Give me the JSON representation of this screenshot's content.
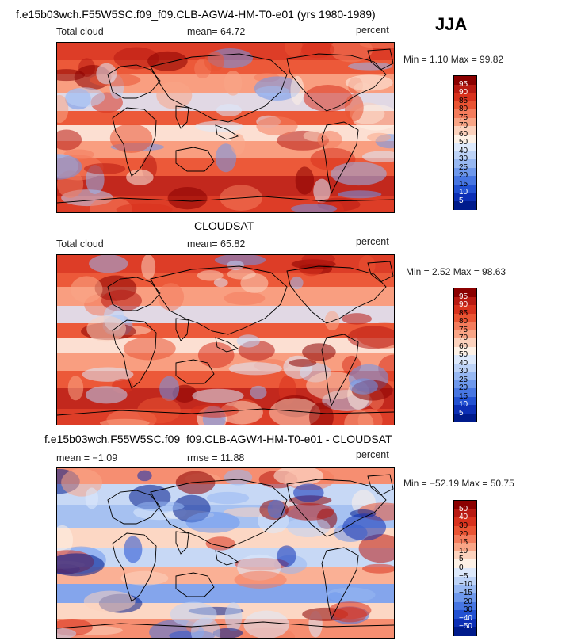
{
  "header": {
    "main_title": "f.e15b03wch.F55W5SC.f09_f09.CLB-AGW4-HM-T0-e01 (yrs 1980-1989)",
    "season": "JJA"
  },
  "panels": [
    {
      "title": "",
      "left_label": "Total cloud",
      "center_label": "mean=  64.72",
      "right_label": "percent",
      "minmax": "Min =   1.10 Max =  99.82"
    },
    {
      "title": "CLOUDSAT",
      "left_label": "Total cloud",
      "center_label": "mean=  65.82",
      "right_label": "percent",
      "minmax": "Min =   2.52 Max =  98.63"
    },
    {
      "title": "f.e15b03wch.F55W5SC.f09_f09.CLB-AGW4-HM-T0-e01 - CLOUDSAT",
      "left_label": "mean =  −1.09",
      "center_label": "rmse =  11.88",
      "right_label": "percent",
      "minmax": "Min = −52.19 Max =  50.75"
    }
  ],
  "chart_data": [
    {
      "type": "heatmap",
      "title": "",
      "variable": "Total cloud",
      "units": "percent",
      "mean": 64.72,
      "min": 1.1,
      "max": 99.82,
      "colorbar": {
        "levels": [
          "95",
          "90",
          "85",
          "80",
          "75",
          "70",
          "60",
          "50",
          "40",
          "30",
          "25",
          "20",
          "15",
          "10",
          "5"
        ],
        "colors": [
          "#8b0000",
          "#b81a12",
          "#d8321d",
          "#ea5433",
          "#f47c5c",
          "#f9a586",
          "#fcd2bd",
          "#fdf1e6",
          "#dde9fb",
          "#bdd3f7",
          "#97b8f2",
          "#6e98ec",
          "#4776e2",
          "#2251d2",
          "#0c2fb5",
          "#001b8c"
        ]
      }
    },
    {
      "type": "heatmap",
      "title": "CLOUDSAT",
      "variable": "Total cloud",
      "units": "percent",
      "mean": 65.82,
      "min": 2.52,
      "max": 98.63,
      "colorbar": {
        "levels": [
          "95",
          "90",
          "85",
          "80",
          "75",
          "70",
          "60",
          "50",
          "40",
          "30",
          "25",
          "20",
          "15",
          "10",
          "5"
        ],
        "colors": [
          "#8b0000",
          "#b81a12",
          "#d8321d",
          "#ea5433",
          "#f47c5c",
          "#f9a586",
          "#fcd2bd",
          "#fdf1e6",
          "#dde9fb",
          "#bdd3f7",
          "#97b8f2",
          "#6e98ec",
          "#4776e2",
          "#2251d2",
          "#0c2fb5",
          "#001b8c"
        ]
      }
    },
    {
      "type": "heatmap",
      "title": "f.e15b03wch.F55W5SC.f09_f09.CLB-AGW4-HM-T0-e01 - CLOUDSAT",
      "units": "percent",
      "mean": -1.09,
      "rmse": 11.88,
      "min": -52.19,
      "max": 50.75,
      "colorbar": {
        "levels": [
          "50",
          "40",
          "30",
          "20",
          "15",
          "10",
          "5",
          "0",
          "−5",
          "−10",
          "−15",
          "−20",
          "−30",
          "−40",
          "−50"
        ],
        "colors": [
          "#8b0000",
          "#b81a12",
          "#d8321d",
          "#ea5433",
          "#f47c5c",
          "#f9a586",
          "#fcd2bd",
          "#fdf1e6",
          "#dde9fb",
          "#bdd3f7",
          "#97b8f2",
          "#6e98ec",
          "#4776e2",
          "#2251d2",
          "#0c2fb5",
          "#001b8c"
        ]
      }
    }
  ]
}
